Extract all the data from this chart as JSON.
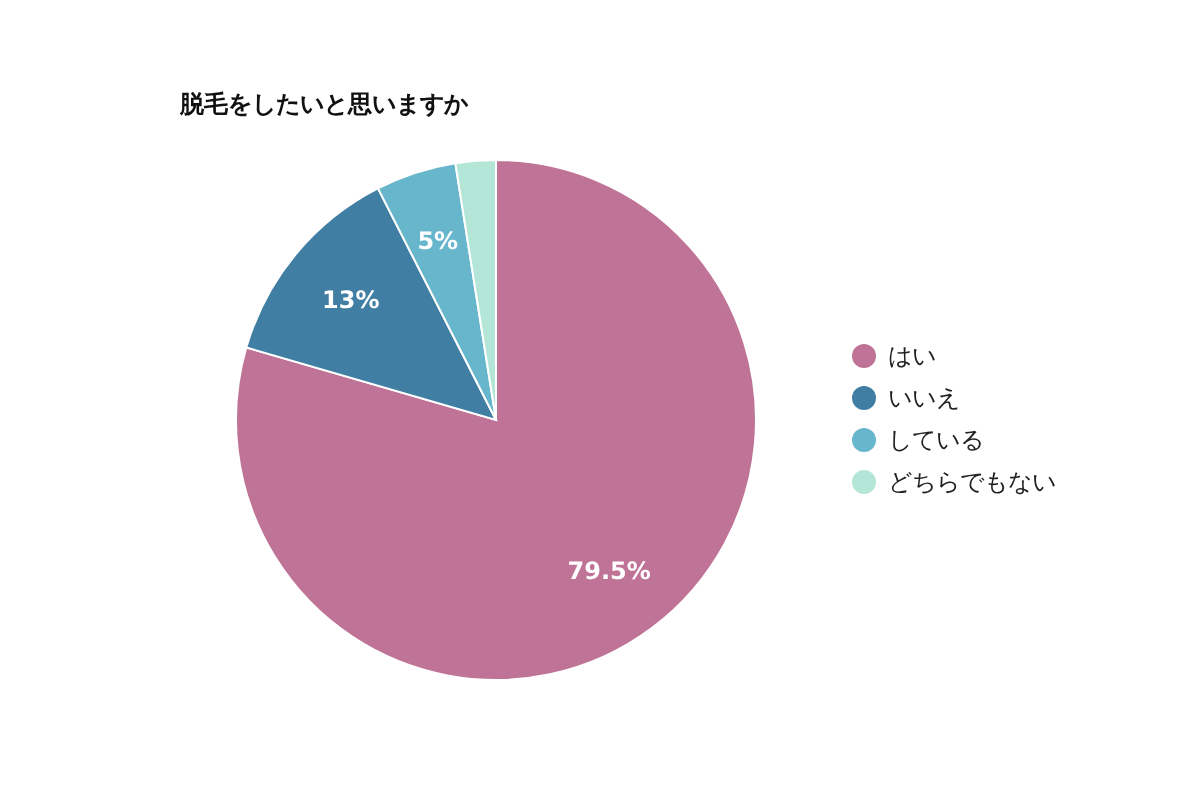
{
  "chart_data": {
    "type": "pie",
    "title": "脱毛をしたいと思いますか",
    "categories": [
      "はい",
      "いいえ",
      "している",
      "どちらでもない"
    ],
    "values": [
      79.5,
      13,
      5,
      2.5
    ],
    "value_labels": [
      "79.5%",
      "13%",
      "5%",
      null
    ],
    "colors": [
      "#bf7396",
      "#417ea4",
      "#68b6cc",
      "#b3e6d6"
    ],
    "legend": "right"
  }
}
